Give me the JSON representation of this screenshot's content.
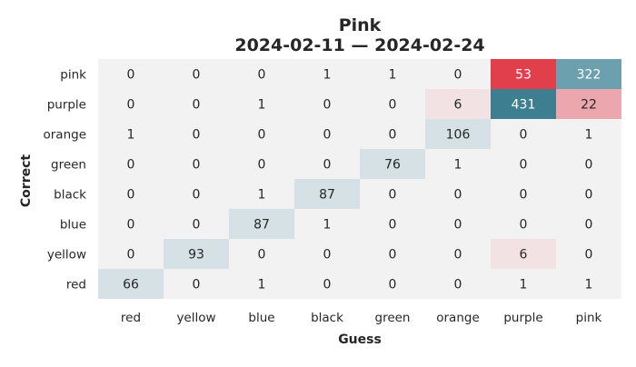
{
  "chart_data": {
    "type": "heatmap",
    "title": "Pink",
    "subtitle": "2024-02-11 — 2024-02-24",
    "xlabel": "Guess",
    "ylabel": "Correct",
    "x_categories": [
      "red",
      "yellow",
      "blue",
      "black",
      "green",
      "orange",
      "purple",
      "pink"
    ],
    "y_categories": [
      "pink",
      "purple",
      "orange",
      "green",
      "black",
      "blue",
      "yellow",
      "red"
    ],
    "values": [
      [
        0,
        0,
        0,
        1,
        1,
        0,
        53,
        322
      ],
      [
        0,
        0,
        1,
        0,
        0,
        6,
        431,
        22
      ],
      [
        1,
        0,
        0,
        0,
        0,
        106,
        0,
        1
      ],
      [
        0,
        0,
        0,
        0,
        76,
        1,
        0,
        0
      ],
      [
        0,
        0,
        1,
        87,
        0,
        0,
        0,
        0
      ],
      [
        0,
        0,
        87,
        1,
        0,
        0,
        0,
        0
      ],
      [
        0,
        93,
        0,
        0,
        0,
        0,
        6,
        0
      ],
      [
        66,
        0,
        1,
        0,
        0,
        0,
        1,
        1
      ]
    ],
    "colors": {
      "background": "#f2f2f2",
      "diagonal_light": "#d5e1e4",
      "diagonal_dark": "#3d7f90",
      "diagonal_mid": "#6da0af",
      "offdiag_light": "#f3e2e4",
      "offdiag_mid": "#eba6ae",
      "offdiag_dark": "#e13f4c"
    },
    "grid": false,
    "legend": "none"
  }
}
